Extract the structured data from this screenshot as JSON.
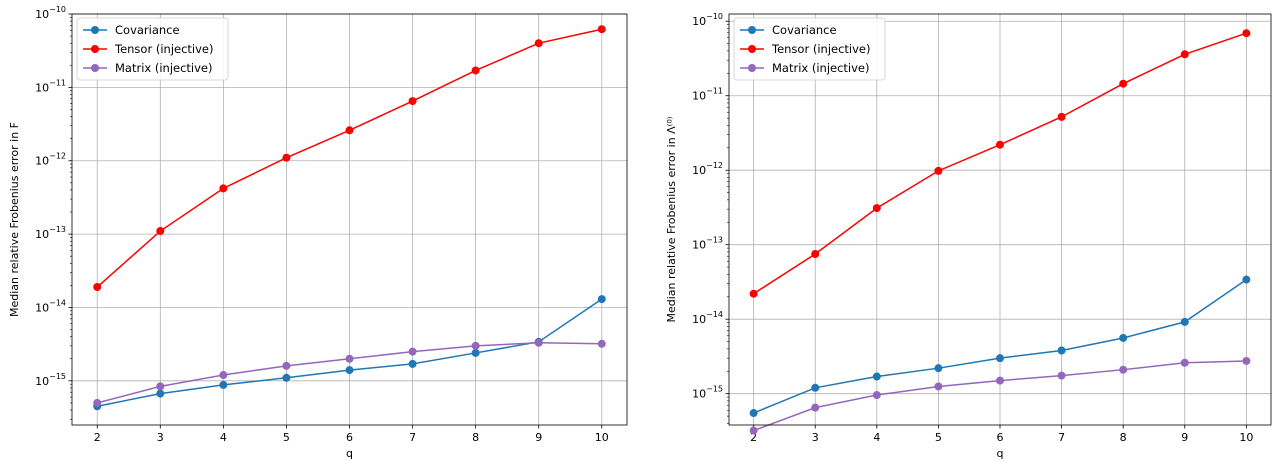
{
  "chart_data": [
    {
      "type": "line",
      "xlabel": "q",
      "ylabel": "Median relative Frobenius error in F",
      "yscale": "log",
      "ylim": [
        2.5e-16,
        1e-10
      ],
      "xlim": [
        1.6,
        10.4
      ],
      "x": [
        2,
        3,
        4,
        5,
        6,
        7,
        8,
        9,
        10
      ],
      "xticks": [
        "2",
        "3",
        "4",
        "5",
        "6",
        "7",
        "8",
        "9",
        "10"
      ],
      "yticks": [
        {
          "base": "10",
          "exp": "−15",
          "value": 1e-15
        },
        {
          "base": "10",
          "exp": "−14",
          "value": 1e-14
        },
        {
          "base": "10",
          "exp": "−13",
          "value": 1e-13
        },
        {
          "base": "10",
          "exp": "−12",
          "value": 1e-12
        },
        {
          "base": "10",
          "exp": "−11",
          "value": 1e-11
        },
        {
          "base": "10",
          "exp": "−10",
          "value": 1e-10
        }
      ],
      "grid": true,
      "legend_position": "upper-left",
      "series": [
        {
          "name": "Covariance",
          "color": "#1f77b4",
          "values": [
            4.5e-16,
            6.7e-16,
            8.8e-16,
            1.1e-15,
            1.4e-15,
            1.7e-15,
            2.4e-15,
            3.4e-15,
            1.3e-14
          ]
        },
        {
          "name": "Tensor (injective)",
          "color": "#ff0000",
          "values": [
            1.9e-14,
            1.1e-13,
            4.2e-13,
            1.1e-12,
            2.6e-12,
            6.5e-12,
            1.7e-11,
            4e-11,
            6.2e-11
          ]
        },
        {
          "name": "Matrix (injective)",
          "color": "#9467bd",
          "values": [
            5e-16,
            8.4e-16,
            1.2e-15,
            1.6e-15,
            2e-15,
            2.5e-15,
            3e-15,
            3.3e-15,
            3.2e-15
          ]
        }
      ]
    },
    {
      "type": "line",
      "xlabel": "q",
      "ylabel": "Median relative Frobenius error in Λ⁽⁰⁾",
      "yscale": "log",
      "ylim": [
        3.8e-16,
        1.25e-10
      ],
      "xlim": [
        1.6,
        10.4
      ],
      "x": [
        2,
        3,
        4,
        5,
        6,
        7,
        8,
        9,
        10
      ],
      "xticks": [
        "2",
        "3",
        "4",
        "5",
        "6",
        "7",
        "8",
        "9",
        "10"
      ],
      "yticks": [
        {
          "base": "10",
          "exp": "−15",
          "value": 1e-15
        },
        {
          "base": "10",
          "exp": "−14",
          "value": 1e-14
        },
        {
          "base": "10",
          "exp": "−13",
          "value": 1e-13
        },
        {
          "base": "10",
          "exp": "−12",
          "value": 1e-12
        },
        {
          "base": "10",
          "exp": "−11",
          "value": 1e-11
        },
        {
          "base": "10",
          "exp": "−10",
          "value": 1e-10
        }
      ],
      "grid": true,
      "legend_position": "upper-left",
      "series": [
        {
          "name": "Covariance",
          "color": "#1f77b4",
          "values": [
            5.5e-16,
            1.2e-15,
            1.7e-15,
            2.2e-15,
            3e-15,
            3.8e-15,
            5.6e-15,
            9.2e-15,
            3.4e-14
          ]
        },
        {
          "name": "Tensor (injective)",
          "color": "#ff0000",
          "values": [
            2.2e-14,
            7.5e-14,
            3.1e-13,
            9.8e-13,
            2.2e-12,
            5.2e-12,
            1.45e-11,
            3.6e-11,
            6.9e-11
          ]
        },
        {
          "name": "Matrix (injective)",
          "color": "#9467bd",
          "values": [
            3.2e-16,
            6.5e-16,
            9.6e-16,
            1.25e-15,
            1.5e-15,
            1.75e-15,
            2.1e-15,
            2.6e-15,
            2.75e-15
          ]
        }
      ]
    }
  ]
}
